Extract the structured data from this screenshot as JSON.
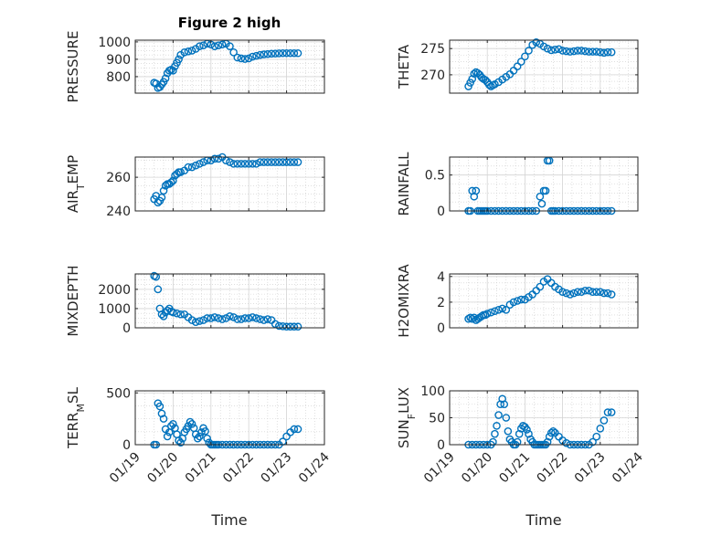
{
  "figure": {
    "title": "Figure 2 high"
  },
  "chart_data": [
    {
      "type": "scatter",
      "ylabel": "PRESSURE",
      "yticks": [
        800,
        900,
        1000
      ],
      "ylim": [
        705,
        1010
      ],
      "x": [
        0.5,
        0.55,
        0.6,
        0.65,
        0.7,
        0.75,
        0.8,
        0.85,
        0.9,
        0.95,
        1.0,
        1.05,
        1.1,
        1.15,
        1.2,
        1.3,
        1.4,
        1.5,
        1.6,
        1.7,
        1.8,
        1.9,
        2.0,
        2.1,
        2.2,
        2.3,
        2.4,
        2.5,
        2.6,
        2.7,
        2.8,
        2.9,
        3.0,
        3.1,
        3.2,
        3.3,
        3.4,
        3.5,
        3.6,
        3.7,
        3.8,
        3.9,
        4.0,
        4.1,
        4.2,
        4.3
      ],
      "y": [
        765,
        760,
        735,
        740,
        755,
        770,
        790,
        820,
        835,
        840,
        835,
        860,
        880,
        900,
        925,
        940,
        945,
        950,
        960,
        975,
        980,
        990,
        985,
        975,
        980,
        985,
        990,
        975,
        940,
        910,
        905,
        902,
        905,
        915,
        920,
        925,
        928,
        930,
        932,
        933,
        934,
        935,
        935,
        935,
        935,
        935
      ]
    },
    {
      "type": "scatter",
      "ylabel": "THETA",
      "yticks": [
        270,
        275
      ],
      "ylim": [
        266.5,
        276.6
      ],
      "x": [
        0.5,
        0.55,
        0.6,
        0.65,
        0.7,
        0.75,
        0.8,
        0.85,
        0.9,
        0.95,
        1.0,
        1.05,
        1.1,
        1.15,
        1.2,
        1.3,
        1.4,
        1.5,
        1.6,
        1.7,
        1.8,
        1.9,
        2.0,
        2.1,
        2.2,
        2.3,
        2.4,
        2.5,
        2.6,
        2.7,
        2.8,
        2.9,
        3.0,
        3.1,
        3.2,
        3.3,
        3.4,
        3.5,
        3.6,
        3.7,
        3.8,
        3.9,
        4.0,
        4.1,
        4.2,
        4.3
      ],
      "y": [
        267.8,
        268.5,
        269.2,
        270.2,
        270.5,
        270.3,
        270.0,
        269.5,
        269.2,
        269.0,
        268.6,
        268.1,
        267.8,
        268.0,
        268.2,
        268.6,
        269.1,
        269.6,
        270.1,
        270.8,
        271.6,
        272.5,
        273.5,
        274.6,
        275.7,
        276.2,
        275.9,
        275.4,
        275.0,
        274.7,
        274.8,
        274.9,
        274.6,
        274.5,
        274.4,
        274.5,
        274.6,
        274.6,
        274.5,
        274.4,
        274.4,
        274.4,
        274.3,
        274.2,
        274.3,
        274.3
      ]
    },
    {
      "type": "scatter",
      "ylabel": "AIR_TEMP",
      "ylabel_main": "AIR",
      "ylabel_sub": "T",
      "ylabel_tail": "EMP",
      "yticks": [
        240,
        260
      ],
      "ylim": [
        240,
        272
      ],
      "x": [
        0.5,
        0.55,
        0.6,
        0.65,
        0.7,
        0.75,
        0.8,
        0.85,
        0.9,
        0.95,
        1.0,
        1.05,
        1.1,
        1.15,
        1.2,
        1.3,
        1.4,
        1.5,
        1.6,
        1.7,
        1.8,
        1.9,
        2.0,
        2.1,
        2.2,
        2.3,
        2.4,
        2.5,
        2.6,
        2.7,
        2.8,
        2.9,
        3.0,
        3.1,
        3.2,
        3.3,
        3.4,
        3.5,
        3.6,
        3.7,
        3.8,
        3.9,
        4.0,
        4.1,
        4.2,
        4.3
      ],
      "y": [
        247,
        249,
        245,
        246,
        248,
        252,
        255,
        256,
        256,
        257,
        258,
        261,
        262,
        263,
        263,
        264,
        266,
        266,
        267,
        268,
        269,
        270,
        270,
        271,
        271,
        272,
        270,
        269,
        268,
        268,
        268,
        268,
        268,
        268,
        268,
        269,
        269,
        269,
        269,
        269,
        269,
        269,
        269,
        269,
        269,
        269
      ]
    },
    {
      "type": "scatter",
      "ylabel": "RAINFALL",
      "yticks": [
        0,
        0.5
      ],
      "ylim": [
        0,
        0.75
      ],
      "x": [
        0.5,
        0.55,
        0.6,
        0.65,
        0.7,
        0.75,
        0.8,
        0.85,
        0.9,
        0.95,
        1.0,
        1.1,
        1.2,
        1.3,
        1.4,
        1.5,
        1.6,
        1.7,
        1.8,
        1.9,
        2.0,
        2.1,
        2.2,
        2.3,
        2.4,
        2.45,
        2.5,
        2.55,
        2.6,
        2.65,
        2.7,
        2.75,
        2.8,
        2.9,
        3.0,
        3.1,
        3.2,
        3.3,
        3.4,
        3.5,
        3.6,
        3.7,
        3.8,
        3.9,
        4.0,
        4.1,
        4.2,
        4.3
      ],
      "y": [
        0,
        0,
        0.28,
        0.2,
        0.28,
        0,
        0,
        0,
        0,
        0,
        0,
        0,
        0,
        0,
        0,
        0,
        0,
        0,
        0,
        0,
        0,
        0,
        0,
        0,
        0.2,
        0.1,
        0.28,
        0.28,
        0.7,
        0.7,
        0,
        0,
        0,
        0,
        0,
        0,
        0,
        0,
        0,
        0,
        0,
        0,
        0,
        0,
        0,
        0,
        0,
        0
      ]
    },
    {
      "type": "scatter",
      "ylabel": "MIXDEPTH",
      "yticks": [
        0,
        1000,
        2000
      ],
      "ylim": [
        0,
        2800
      ],
      "x": [
        0.5,
        0.55,
        0.6,
        0.65,
        0.7,
        0.75,
        0.8,
        0.85,
        0.9,
        0.95,
        1.0,
        1.1,
        1.2,
        1.3,
        1.4,
        1.5,
        1.6,
        1.7,
        1.8,
        1.9,
        2.0,
        2.1,
        2.2,
        2.3,
        2.4,
        2.5,
        2.6,
        2.7,
        2.8,
        2.9,
        3.0,
        3.1,
        3.2,
        3.3,
        3.4,
        3.5,
        3.6,
        3.7,
        3.8,
        3.9,
        4.0,
        4.1,
        4.2,
        4.3
      ],
      "y": [
        2700,
        2650,
        2000,
        1000,
        700,
        600,
        800,
        900,
        1000,
        850,
        800,
        750,
        700,
        700,
        550,
        400,
        300,
        350,
        400,
        500,
        500,
        550,
        500,
        450,
        500,
        600,
        550,
        450,
        450,
        500,
        500,
        550,
        500,
        450,
        400,
        450,
        400,
        200,
        100,
        80,
        60,
        60,
        60,
        60
      ]
    },
    {
      "type": "scatter",
      "ylabel": "H2OMIXRA",
      "yticks": [
        0,
        2,
        4
      ],
      "ylim": [
        0,
        4.2
      ],
      "x": [
        0.5,
        0.55,
        0.6,
        0.65,
        0.7,
        0.75,
        0.8,
        0.85,
        0.9,
        0.95,
        1.0,
        1.1,
        1.2,
        1.3,
        1.4,
        1.5,
        1.6,
        1.7,
        1.8,
        1.9,
        2.0,
        2.1,
        2.2,
        2.3,
        2.4,
        2.5,
        2.6,
        2.7,
        2.8,
        2.9,
        3.0,
        3.1,
        3.2,
        3.3,
        3.4,
        3.5,
        3.6,
        3.7,
        3.8,
        3.9,
        4.0,
        4.1,
        4.2,
        4.3
      ],
      "y": [
        0.7,
        0.8,
        0.7,
        0.8,
        0.6,
        0.7,
        0.8,
        0.9,
        1.0,
        1.0,
        1.1,
        1.2,
        1.3,
        1.4,
        1.5,
        1.4,
        1.8,
        2.0,
        2.1,
        2.2,
        2.2,
        2.4,
        2.6,
        2.9,
        3.2,
        3.6,
        3.8,
        3.5,
        3.2,
        3.0,
        2.8,
        2.7,
        2.6,
        2.7,
        2.8,
        2.8,
        2.9,
        2.9,
        2.8,
        2.8,
        2.8,
        2.7,
        2.7,
        2.6
      ]
    },
    {
      "type": "scatter",
      "ylabel": "TERR_MSL",
      "ylabel_main": "TERR",
      "ylabel_sub": "M",
      "ylabel_tail": "SL",
      "yticks": [
        0,
        500
      ],
      "ylim": [
        0,
        520
      ],
      "x": [
        0.5,
        0.55,
        0.6,
        0.65,
        0.7,
        0.75,
        0.8,
        0.85,
        0.9,
        0.95,
        1.0,
        1.05,
        1.1,
        1.15,
        1.2,
        1.25,
        1.3,
        1.35,
        1.4,
        1.45,
        1.5,
        1.55,
        1.6,
        1.65,
        1.7,
        1.75,
        1.8,
        1.85,
        1.9,
        1.95,
        2.0,
        2.05,
        2.1,
        2.15,
        2.2,
        2.3,
        2.4,
        2.5,
        2.6,
        2.7,
        2.8,
        2.9,
        3.0,
        3.1,
        3.2,
        3.3,
        3.4,
        3.5,
        3.6,
        3.7,
        3.8,
        3.9,
        4.0,
        4.1,
        4.2,
        4.3
      ],
      "y": [
        0,
        0,
        400,
        370,
        300,
        250,
        150,
        80,
        120,
        180,
        200,
        160,
        100,
        40,
        20,
        60,
        120,
        150,
        180,
        220,
        200,
        160,
        100,
        60,
        80,
        120,
        160,
        130,
        60,
        20,
        0,
        0,
        0,
        0,
        0,
        0,
        0,
        0,
        0,
        0,
        0,
        0,
        0,
        0,
        0,
        0,
        0,
        0,
        0,
        0,
        0,
        30,
        80,
        120,
        150,
        150
      ]
    },
    {
      "type": "scatter",
      "ylabel": "SUN_FLUX",
      "ylabel_main": "SUN",
      "ylabel_sub": "F",
      "ylabel_tail": "LUX",
      "yticks": [
        0,
        50,
        100
      ],
      "ylim": [
        0,
        100
      ],
      "x": [
        0.5,
        0.6,
        0.7,
        0.8,
        0.9,
        1.0,
        1.1,
        1.15,
        1.2,
        1.25,
        1.3,
        1.35,
        1.4,
        1.45,
        1.5,
        1.55,
        1.6,
        1.65,
        1.7,
        1.75,
        1.8,
        1.85,
        1.9,
        1.95,
        2.0,
        2.05,
        2.1,
        2.15,
        2.2,
        2.25,
        2.3,
        2.35,
        2.4,
        2.45,
        2.5,
        2.55,
        2.6,
        2.65,
        2.7,
        2.75,
        2.8,
        2.9,
        3.0,
        3.1,
        3.2,
        3.3,
        3.4,
        3.5,
        3.6,
        3.7,
        3.8,
        3.9,
        4.0,
        4.1,
        4.2,
        4.3
      ],
      "y": [
        0,
        0,
        0,
        0,
        0,
        0,
        0,
        5,
        20,
        35,
        55,
        75,
        85,
        75,
        50,
        25,
        10,
        5,
        0,
        0,
        5,
        20,
        30,
        35,
        33,
        28,
        20,
        10,
        5,
        0,
        0,
        0,
        0,
        0,
        0,
        0,
        5,
        15,
        22,
        25,
        22,
        15,
        8,
        3,
        0,
        0,
        0,
        0,
        0,
        0,
        5,
        15,
        30,
        45,
        60,
        60
      ]
    }
  ],
  "x_axis": {
    "label": "Time",
    "ticks": [
      "01/19",
      "01/20",
      "01/21",
      "01/22",
      "01/23",
      "01/24"
    ],
    "tick_values": [
      0,
      1,
      2,
      3,
      4,
      5
    ]
  }
}
